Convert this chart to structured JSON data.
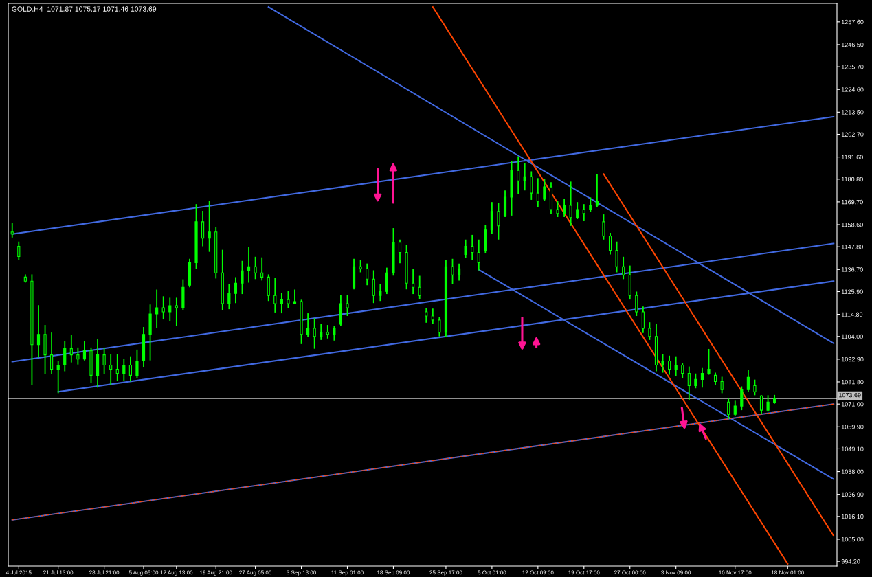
{
  "chart_data": {
    "type": "candlestick",
    "title": "GOLD,H4  1071.87 1075.17 1071.46 1073.69",
    "color": "#00ff00",
    "categories": [
      null,
      "4 Jul 2015",
      null,
      null,
      null,
      null,
      null,
      "21 Jul 13:00",
      null,
      null,
      null,
      null,
      null,
      null,
      "28 Jul 21:00",
      null,
      null,
      null,
      null,
      null,
      "5 Aug 05:00",
      null,
      null,
      null,
      null,
      "12 Aug 13:00",
      null,
      null,
      null,
      null,
      null,
      "19 Aug 21:00",
      null,
      null,
      null,
      null,
      null,
      "27 Aug 05:00",
      null,
      null,
      null,
      null,
      null,
      null,
      "3 Sep 13:00",
      null,
      null,
      null,
      null,
      null,
      null,
      "11 Sep 01:00",
      null,
      null,
      null,
      null,
      null,
      null,
      "18 Sep 09:00",
      null,
      null,
      null,
      null,
      null,
      null,
      null,
      "25 Sep 17:00",
      null,
      null,
      null,
      null,
      null,
      null,
      "5 Oct 01:00",
      null,
      null,
      null,
      null,
      null,
      null,
      "12 Oct 09:00",
      null,
      null,
      null,
      null,
      null,
      null,
      "19 Oct 17:00",
      null,
      null,
      null,
      null,
      null,
      null,
      "27 Oct 00:00",
      null,
      null,
      null,
      null,
      null,
      null,
      "3 Nov 09:00",
      null,
      null,
      null,
      null,
      null,
      null,
      null,
      null,
      "10 Nov 17:00",
      null,
      null,
      null,
      null,
      null,
      null,
      null,
      "18 Nov 01:00",
      null,
      null,
      null,
      null,
      null,
      null,
      null
    ],
    "ohlc": [
      [
        1155,
        1159.3,
        1152.6,
        1154
      ],
      [
        1148,
        1150.0,
        1141.6,
        1143
      ],
      [
        1133,
        1134.0,
        1130.6,
        1131
      ],
      [
        1131,
        1134.0,
        1080.6,
        1100
      ],
      [
        1100,
        1119.0,
        1094.0,
        1105
      ],
      [
        1105,
        1109.3,
        1086.0,
        1095
      ],
      [
        1095,
        1105.6,
        1086.0,
        1088
      ],
      [
        1088,
        1091.6,
        1076.6,
        1090
      ],
      [
        1090,
        1101.6,
        1087.3,
        1098
      ],
      [
        1098,
        1104.3,
        1091.6,
        1095
      ],
      [
        1095,
        1098.3,
        1090.6,
        1093
      ],
      [
        1093,
        1101.6,
        1092.6,
        1097
      ],
      [
        1097,
        1098.3,
        1081.6,
        1085
      ],
      [
        1085,
        1102.6,
        1079.3,
        1095
      ],
      [
        1095,
        1098.3,
        1086.0,
        1090
      ],
      [
        1090,
        1095.0,
        1080.6,
        1088
      ],
      [
        1088,
        1095.0,
        1082.6,
        1086
      ],
      [
        1086,
        1092.6,
        1082.6,
        1090
      ],
      [
        1090,
        1094.0,
        1082.3,
        1085
      ],
      [
        1085,
        1097.3,
        1084.0,
        1092
      ],
      [
        1092,
        1108.3,
        1089.3,
        1105
      ],
      [
        1105,
        1119.3,
        1092.6,
        1115
      ],
      [
        1115,
        1126.6,
        1108.3,
        1118
      ],
      [
        1118,
        1123.3,
        1112.6,
        1116
      ],
      [
        1116,
        1122.6,
        1111.6,
        1119
      ],
      [
        1119,
        1122.6,
        1109.3,
        1118
      ],
      [
        1118,
        1131.6,
        1117.3,
        1128
      ],
      [
        1129,
        1141.6,
        1128.3,
        1140
      ],
      [
        1140,
        1168.3,
        1137.3,
        1160
      ],
      [
        1160,
        1165.0,
        1148.3,
        1152
      ],
      [
        1152,
        1170.0,
        1145.6,
        1155
      ],
      [
        1155,
        1157.3,
        1132.6,
        1135
      ],
      [
        1135,
        1146.0,
        1117.3,
        1120
      ],
      [
        1120,
        1129.3,
        1117.6,
        1125
      ],
      [
        1125,
        1132.6,
        1120.6,
        1130
      ],
      [
        1130,
        1140.6,
        1125.0,
        1136
      ],
      [
        1136,
        1147.6,
        1130.6,
        1138
      ],
      [
        1138,
        1142.6,
        1132.3,
        1135
      ],
      [
        1135,
        1142.3,
        1131.6,
        1133
      ],
      [
        1133,
        1134.0,
        1121.6,
        1124
      ],
      [
        1124,
        1132.3,
        1116.0,
        1120
      ],
      [
        1120,
        1125.0,
        1115.6,
        1122
      ],
      [
        1122,
        1126.0,
        1118.3,
        1120
      ],
      [
        1120,
        1126.6,
        1120.0,
        1121
      ],
      [
        1121,
        1121.6,
        1100.6,
        1105
      ],
      [
        1105,
        1115.0,
        1104.0,
        1108
      ],
      [
        1108,
        1112.6,
        1098.3,
        1104
      ],
      [
        1104,
        1110.0,
        1102.6,
        1106
      ],
      [
        1106,
        1109.3,
        1103.3,
        1105
      ],
      [
        1105,
        1109.0,
        1102.3,
        1108
      ],
      [
        1110,
        1124.0,
        1109.3,
        1120
      ],
      [
        1120,
        1124.0,
        1114.3,
        1118
      ],
      [
        1128,
        1141.6,
        1127.3,
        1138
      ],
      [
        1138,
        1141.0,
        1135.6,
        1137
      ],
      [
        1137,
        1139.3,
        1129.3,
        1132
      ],
      [
        1132,
        1136.0,
        1120.6,
        1124
      ],
      [
        1124,
        1129.3,
        1121.6,
        1126
      ],
      [
        1126,
        1137.3,
        1125.0,
        1135
      ],
      [
        1135,
        1156.6,
        1134.0,
        1150
      ],
      [
        1150,
        1151.0,
        1140.0,
        1145
      ],
      [
        1145,
        1148.3,
        1127.3,
        1130
      ],
      [
        1130,
        1136.6,
        1125.0,
        1128
      ],
      [
        1128,
        1133.3,
        1122.6,
        1124
      ],
      [
        1116,
        1117.6,
        1111.0,
        1114
      ],
      [
        1114,
        1117.3,
        1110.6,
        1112
      ],
      [
        1112,
        1113.3,
        1104.3,
        1106
      ],
      [
        1106,
        1141.0,
        1104.0,
        1138
      ],
      [
        1138,
        1141.6,
        1130.0,
        1134
      ],
      [
        1134,
        1139.3,
        1131.6,
        1137
      ],
      [
        1144,
        1151.0,
        1142.6,
        1148
      ],
      [
        1148,
        1153.3,
        1141.6,
        1145
      ],
      [
        1145,
        1151.0,
        1136.6,
        1140
      ],
      [
        1146,
        1158.3,
        1145.0,
        1156
      ],
      [
        1156,
        1169.3,
        1154.3,
        1165
      ],
      [
        1165,
        1169.0,
        1151.6,
        1158
      ],
      [
        1163,
        1175.0,
        1162.6,
        1172
      ],
      [
        1172,
        1189.3,
        1163.3,
        1185
      ],
      [
        1185,
        1191.6,
        1174.0,
        1180
      ],
      [
        1180,
        1188.3,
        1175.6,
        1182
      ],
      [
        1182,
        1184.3,
        1171.0,
        1174
      ],
      [
        1174,
        1181.0,
        1167.6,
        1170
      ],
      [
        1171,
        1180.6,
        1170.6,
        1177
      ],
      [
        1177,
        1179.0,
        1164.0,
        1166
      ],
      [
        1166,
        1170.0,
        1162.6,
        1164
      ],
      [
        1164,
        1171.0,
        1162.6,
        1168
      ],
      [
        1168,
        1179.3,
        1158.3,
        1162
      ],
      [
        1162,
        1169.3,
        1161.6,
        1166
      ],
      [
        1166,
        1168.3,
        1160.6,
        1164
      ],
      [
        1166,
        1171.6,
        1165.0,
        1168
      ],
      [
        1168,
        1183.0,
        1167.3,
        1170
      ],
      [
        1160,
        1163.3,
        1151.6,
        1153
      ],
      [
        1153,
        1154.3,
        1144.3,
        1146
      ],
      [
        1146,
        1150.0,
        1135.6,
        1138
      ],
      [
        1138,
        1142.6,
        1132.3,
        1134
      ],
      [
        1134,
        1138.3,
        1122.3,
        1124
      ],
      [
        1124,
        1125.6,
        1114.3,
        1116
      ],
      [
        1116,
        1118.3,
        1106.0,
        1108
      ],
      [
        1108,
        1110.6,
        1102.6,
        1104
      ],
      [
        1104,
        1110.0,
        1087.3,
        1090
      ],
      [
        1090,
        1095.0,
        1086.6,
        1092
      ],
      [
        1092,
        1094.3,
        1085.6,
        1088
      ],
      [
        1088,
        1094.0,
        1085.0,
        1090
      ],
      [
        1090,
        1090.6,
        1084.0,
        1086
      ],
      [
        1086,
        1089.0,
        1073.3,
        1080
      ],
      [
        1080,
        1085.6,
        1079.0,
        1083
      ],
      [
        1083,
        1088.3,
        1079.3,
        1086
      ],
      [
        1086,
        1097.6,
        1085.6,
        1088
      ],
      [
        1085,
        1086.0,
        1080.6,
        1082
      ],
      [
        1082,
        1084.0,
        1076.6,
        1078
      ],
      [
        1072,
        1073.3,
        1064.0,
        1066
      ],
      [
        1066,
        1072.3,
        1065.6,
        1070
      ],
      [
        1070,
        1079.3,
        1068.3,
        1078
      ],
      [
        1078,
        1087.3,
        1077.3,
        1084
      ],
      [
        1080,
        1082.6,
        1075.6,
        1077
      ],
      [
        1075,
        1075.0,
        1066.6,
        1068
      ],
      [
        1068,
        1075.0,
        1067.6,
        1072
      ],
      [
        1071.87,
        1075.17,
        1071.46,
        1073.69
      ],
      null,
      null,
      null,
      null,
      null,
      null,
      null,
      null,
      null
    ],
    "series": [
      {
        "type": "line",
        "color": "#4169e1",
        "values": [
          1154.0,
          null,
          null,
          null,
          null,
          null,
          null,
          null,
          null,
          null,
          null,
          null,
          null,
          null,
          null,
          null,
          null,
          null,
          null,
          null,
          null,
          null,
          null,
          null,
          null,
          null,
          null,
          null,
          null,
          null,
          null,
          null,
          null,
          null,
          null,
          null,
          null,
          null,
          null,
          null,
          null,
          null,
          null,
          null,
          null,
          null,
          null,
          null,
          null,
          null,
          null,
          null,
          null,
          null,
          null,
          null,
          null,
          null,
          null,
          null,
          null,
          null,
          null,
          null,
          null,
          null,
          null,
          null,
          null,
          null,
          null,
          null,
          null,
          null,
          null,
          null,
          null,
          null,
          null,
          null,
          null,
          null,
          null,
          null,
          null,
          null,
          null,
          null,
          null,
          null,
          null,
          null,
          null,
          null,
          null,
          null,
          null,
          null,
          null,
          null,
          null,
          null,
          null,
          null,
          null,
          null,
          null,
          null,
          null,
          null,
          null,
          null,
          null,
          null,
          null,
          null,
          null,
          null,
          null,
          null,
          null,
          null,
          null,
          null,
          null,
          1211.3
        ]
      },
      {
        "type": "line",
        "color": "#4169e1",
        "values": [
          1091.7,
          null,
          null,
          null,
          null,
          null,
          null,
          null,
          null,
          null,
          null,
          null,
          null,
          null,
          null,
          null,
          null,
          null,
          null,
          null,
          null,
          null,
          null,
          null,
          null,
          null,
          null,
          null,
          null,
          null,
          null,
          null,
          null,
          null,
          null,
          null,
          null,
          null,
          null,
          null,
          null,
          null,
          null,
          null,
          null,
          null,
          null,
          null,
          null,
          null,
          null,
          null,
          null,
          null,
          null,
          null,
          null,
          null,
          null,
          null,
          null,
          null,
          null,
          null,
          null,
          null,
          null,
          null,
          null,
          null,
          null,
          null,
          null,
          null,
          null,
          null,
          null,
          null,
          null,
          null,
          null,
          null,
          null,
          null,
          null,
          null,
          null,
          null,
          null,
          null,
          null,
          null,
          null,
          null,
          null,
          null,
          null,
          null,
          null,
          null,
          null,
          null,
          null,
          null,
          null,
          null,
          null,
          null,
          null,
          null,
          null,
          null,
          null,
          null,
          null,
          null,
          null,
          null,
          null,
          null,
          null,
          null,
          null,
          null,
          null,
          1149.4
        ]
      },
      {
        "type": "line",
        "color": "#4169e1",
        "values": [
          null,
          null,
          null,
          null,
          null,
          null,
          null,
          1077.0,
          null,
          null,
          null,
          null,
          null,
          null,
          null,
          null,
          null,
          null,
          null,
          null,
          null,
          null,
          null,
          null,
          null,
          null,
          null,
          null,
          null,
          null,
          null,
          null,
          null,
          null,
          null,
          null,
          null,
          null,
          null,
          null,
          null,
          null,
          null,
          null,
          null,
          null,
          null,
          null,
          null,
          null,
          null,
          null,
          null,
          null,
          null,
          null,
          null,
          null,
          null,
          null,
          null,
          null,
          null,
          null,
          null,
          null,
          null,
          null,
          null,
          null,
          null,
          null,
          null,
          null,
          null,
          null,
          null,
          null,
          null,
          null,
          null,
          null,
          null,
          null,
          null,
          null,
          null,
          null,
          null,
          null,
          null,
          null,
          null,
          null,
          null,
          null,
          null,
          null,
          null,
          null,
          null,
          null,
          null,
          null,
          null,
          null,
          null,
          null,
          null,
          null,
          null,
          null,
          null,
          null,
          null,
          null,
          null,
          null,
          null,
          null,
          null,
          null,
          null,
          null,
          null,
          1131.0
        ]
      },
      {
        "type": "line",
        "color": "#4169e1",
        "values": [
          null,
          null,
          null,
          null,
          null,
          null,
          null,
          null,
          null,
          null,
          null,
          null,
          null,
          null,
          null,
          null,
          null,
          null,
          null,
          null,
          null,
          null,
          null,
          null,
          null,
          null,
          null,
          null,
          null,
          null,
          null,
          null,
          null,
          null,
          null,
          null,
          null,
          null,
          null,
          1264.9,
          null,
          null,
          null,
          null,
          null,
          null,
          null,
          null,
          null,
          null,
          null,
          null,
          null,
          null,
          null,
          null,
          null,
          null,
          null,
          null,
          null,
          null,
          null,
          null,
          null,
          null,
          null,
          null,
          null,
          null,
          null,
          null,
          null,
          null,
          null,
          null,
          null,
          null,
          null,
          null,
          null,
          null,
          null,
          null,
          null,
          null,
          null,
          null,
          null,
          null,
          null,
          null,
          null,
          null,
          null,
          null,
          null,
          null,
          null,
          null,
          null,
          null,
          null,
          null,
          null,
          null,
          null,
          null,
          null,
          null,
          null,
          null,
          null,
          null,
          null,
          null,
          null,
          null,
          null,
          null,
          null,
          null,
          null,
          null,
          null,
          1100.6
        ]
      },
      {
        "type": "line",
        "color": "#4169e1",
        "values": [
          null,
          null,
          null,
          null,
          null,
          null,
          null,
          null,
          null,
          null,
          null,
          null,
          null,
          null,
          null,
          null,
          null,
          null,
          null,
          null,
          null,
          null,
          null,
          null,
          null,
          null,
          null,
          null,
          null,
          null,
          null,
          null,
          null,
          null,
          null,
          null,
          null,
          null,
          null,
          null,
          null,
          null,
          null,
          null,
          null,
          null,
          null,
          null,
          null,
          null,
          null,
          null,
          null,
          null,
          null,
          null,
          null,
          null,
          null,
          null,
          null,
          null,
          null,
          null,
          null,
          null,
          null,
          null,
          null,
          null,
          null,
          1136.6,
          null,
          null,
          null,
          null,
          null,
          null,
          null,
          null,
          null,
          null,
          null,
          null,
          null,
          null,
          null,
          null,
          null,
          null,
          null,
          null,
          null,
          null,
          null,
          null,
          null,
          null,
          null,
          null,
          null,
          null,
          null,
          null,
          null,
          null,
          null,
          null,
          null,
          null,
          null,
          null,
          null,
          null,
          null,
          null,
          null,
          null,
          null,
          null,
          null,
          null,
          null,
          null,
          null,
          1034.3
        ]
      },
      {
        "type": "line",
        "color": "#4169e1",
        "values": [
          1014.4,
          null,
          null,
          null,
          null,
          null,
          null,
          null,
          null,
          null,
          null,
          null,
          null,
          null,
          null,
          null,
          null,
          null,
          null,
          null,
          null,
          null,
          null,
          null,
          null,
          null,
          null,
          null,
          null,
          null,
          null,
          null,
          null,
          null,
          null,
          null,
          null,
          null,
          null,
          null,
          null,
          null,
          null,
          null,
          null,
          null,
          null,
          null,
          null,
          null,
          null,
          null,
          null,
          null,
          null,
          null,
          null,
          null,
          null,
          null,
          null,
          null,
          null,
          null,
          null,
          null,
          null,
          null,
          null,
          null,
          null,
          null,
          null,
          null,
          null,
          null,
          null,
          null,
          null,
          null,
          null,
          null,
          null,
          null,
          null,
          null,
          null,
          null,
          null,
          null,
          null,
          null,
          null,
          null,
          null,
          null,
          null,
          null,
          null,
          null,
          null,
          null,
          null,
          null,
          null,
          null,
          null,
          null,
          null,
          null,
          null,
          null,
          null,
          null,
          null,
          null,
          null,
          null,
          null,
          null,
          null,
          null,
          null,
          null,
          null,
          1071.0
        ]
      },
      {
        "type": "line",
        "color": "#ff4500",
        "line_style": "dashed",
        "values": [
          1014.4,
          null,
          null,
          null,
          null,
          null,
          null,
          null,
          null,
          null,
          null,
          null,
          null,
          null,
          null,
          null,
          null,
          null,
          null,
          null,
          null,
          null,
          null,
          null,
          null,
          null,
          null,
          null,
          null,
          null,
          null,
          null,
          null,
          null,
          null,
          null,
          null,
          null,
          null,
          null,
          null,
          null,
          null,
          null,
          null,
          null,
          null,
          null,
          null,
          null,
          null,
          null,
          null,
          null,
          null,
          null,
          null,
          null,
          null,
          null,
          null,
          null,
          null,
          null,
          null,
          null,
          null,
          null,
          null,
          null,
          null,
          null,
          null,
          null,
          null,
          null,
          null,
          null,
          null,
          null,
          null,
          null,
          null,
          null,
          null,
          null,
          null,
          null,
          null,
          null,
          null,
          null,
          null,
          null,
          null,
          null,
          null,
          null,
          null,
          null,
          null,
          null,
          null,
          null,
          null,
          null,
          null,
          null,
          null,
          null,
          null,
          null,
          null,
          null,
          null,
          null,
          null,
          null,
          null,
          null,
          null,
          null,
          null,
          null,
          null,
          1071.0
        ]
      },
      {
        "type": "line",
        "color": "#ff4500",
        "values": [
          null,
          null,
          null,
          null,
          null,
          null,
          null,
          null,
          null,
          null,
          null,
          null,
          null,
          null,
          null,
          null,
          null,
          null,
          null,
          null,
          null,
          null,
          null,
          null,
          null,
          null,
          null,
          null,
          null,
          null,
          null,
          null,
          null,
          null,
          null,
          null,
          null,
          null,
          null,
          null,
          null,
          null,
          null,
          null,
          null,
          null,
          null,
          null,
          null,
          null,
          null,
          null,
          null,
          null,
          null,
          null,
          null,
          null,
          null,
          null,
          null,
          null,
          null,
          null,
          1264.9,
          null,
          null,
          null,
          null,
          null,
          null,
          null,
          null,
          null,
          null,
          null,
          null,
          null,
          null,
          null,
          null,
          null,
          null,
          null,
          null,
          null,
          null,
          null,
          null,
          null,
          null,
          null,
          null,
          null,
          null,
          null,
          null,
          null,
          null,
          null,
          null,
          null,
          null,
          null,
          null,
          null,
          null,
          null,
          null,
          null,
          null,
          null,
          null,
          null,
          null,
          null,
          null,
          null,
          993.0,
          null,
          null,
          null,
          null,
          null,
          null,
          null
        ]
      },
      {
        "type": "line",
        "color": "#ff4500",
        "values": [
          null,
          null,
          null,
          null,
          null,
          null,
          null,
          null,
          null,
          null,
          null,
          null,
          null,
          null,
          null,
          null,
          null,
          null,
          null,
          null,
          null,
          null,
          null,
          null,
          null,
          null,
          null,
          null,
          null,
          null,
          null,
          null,
          null,
          null,
          null,
          null,
          null,
          null,
          null,
          null,
          null,
          null,
          null,
          null,
          null,
          null,
          null,
          null,
          null,
          null,
          null,
          null,
          null,
          null,
          null,
          null,
          null,
          null,
          null,
          null,
          null,
          null,
          null,
          null,
          null,
          null,
          null,
          null,
          null,
          null,
          null,
          null,
          null,
          null,
          null,
          null,
          null,
          null,
          null,
          null,
          null,
          null,
          null,
          null,
          null,
          null,
          null,
          null,
          null,
          null,
          1183.3,
          null,
          null,
          null,
          null,
          null,
          null,
          null,
          null,
          null,
          null,
          null,
          null,
          null,
          null,
          null,
          null,
          null,
          null,
          null,
          null,
          null,
          null,
          null,
          null,
          null,
          null,
          null,
          null,
          null,
          null,
          null,
          null,
          null,
          null,
          1006.6
        ]
      }
    ],
    "ref_lines": [
      {
        "axis": "y",
        "value": 1073.69,
        "label": "1073.69",
        "color": "#c0c0c0"
      }
    ],
    "ylim": [
      991.9,
      1266.6
    ],
    "yticks": [
      {
        "value": 1257.6,
        "label": "1257.60"
      },
      {
        "value": 1246.5,
        "label": "1246.50"
      },
      {
        "value": 1235.7,
        "label": "1235.70"
      },
      {
        "value": 1224.6,
        "label": "1224.60"
      },
      {
        "value": 1213.5,
        "label": "1213.50"
      },
      {
        "value": 1202.7,
        "label": "1202.70"
      },
      {
        "value": 1191.6,
        "label": "1191.60"
      },
      {
        "value": 1180.8,
        "label": "1180.80"
      },
      {
        "value": 1169.7,
        "label": "1169.70"
      },
      {
        "value": 1158.6,
        "label": "1158.60"
      },
      {
        "value": 1147.8,
        "label": "1147.80"
      },
      {
        "value": 1136.7,
        "label": "1136.70"
      },
      {
        "value": 1125.9,
        "label": "1125.90"
      },
      {
        "value": 1114.8,
        "label": "1114.80"
      },
      {
        "value": 1104.0,
        "label": "1104.00"
      },
      {
        "value": 1092.9,
        "label": "1092.90"
      },
      {
        "value": 1081.8,
        "label": "1081.80"
      },
      {
        "value": 1071.0,
        "label": "1071.00"
      },
      {
        "value": 1059.9,
        "label": "1059.90"
      },
      {
        "value": 1049.1,
        "label": "1049.10"
      },
      {
        "value": 1038.0,
        "label": "1038.00"
      },
      {
        "value": 1026.9,
        "label": "1026.90"
      },
      {
        "value": 1016.1,
        "label": "1016.10"
      },
      {
        "value": 1005.0,
        "label": "1005.00"
      },
      {
        "value": 994.2,
        "label": "994.20"
      }
    ],
    "grid": false,
    "legend": false
  }
}
